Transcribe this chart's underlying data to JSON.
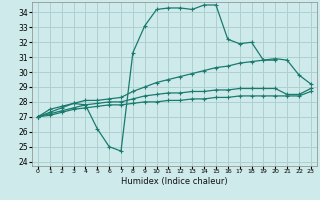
{
  "xlabel": "Humidex (Indice chaleur)",
  "bg_color": "#ceeaea",
  "grid_color": "#afd0d0",
  "line_color": "#1a7a6e",
  "xlim": [
    -0.5,
    23.5
  ],
  "ylim": [
    23.7,
    34.7
  ],
  "yticks": [
    24,
    25,
    26,
    27,
    28,
    29,
    30,
    31,
    32,
    33,
    34
  ],
  "xticks": [
    0,
    1,
    2,
    3,
    4,
    5,
    6,
    7,
    8,
    9,
    10,
    11,
    12,
    13,
    14,
    15,
    16,
    17,
    18,
    19,
    20,
    21,
    22,
    23
  ],
  "line_volatile": {
    "x": [
      0,
      1,
      2,
      3,
      4,
      5,
      6,
      7,
      8,
      9,
      10,
      11,
      12,
      13,
      14,
      15,
      16,
      17,
      18,
      19,
      20
    ],
    "y": [
      27.0,
      27.5,
      27.7,
      27.9,
      27.8,
      26.2,
      25.0,
      24.7,
      31.3,
      33.1,
      34.2,
      34.3,
      34.3,
      34.2,
      34.5,
      34.5,
      32.2,
      31.9,
      32.0,
      30.8,
      30.8
    ]
  },
  "line_upper": {
    "x": [
      0,
      1,
      2,
      3,
      4,
      5,
      6,
      7,
      8,
      9,
      10,
      11,
      12,
      13,
      14,
      15,
      16,
      17,
      18,
      19,
      20,
      21,
      22,
      23
    ],
    "y": [
      27.0,
      27.3,
      27.6,
      27.9,
      28.1,
      28.1,
      28.2,
      28.3,
      28.7,
      29.0,
      29.3,
      29.5,
      29.7,
      29.9,
      30.1,
      30.3,
      30.4,
      30.6,
      30.7,
      30.8,
      30.9,
      30.8,
      29.8,
      29.2
    ]
  },
  "line_mid": {
    "x": [
      0,
      1,
      2,
      3,
      4,
      5,
      6,
      7,
      8,
      9,
      10,
      11,
      12,
      13,
      14,
      15,
      16,
      17,
      18,
      19,
      20,
      21,
      22,
      23
    ],
    "y": [
      27.0,
      27.2,
      27.4,
      27.6,
      27.8,
      27.9,
      28.0,
      28.0,
      28.2,
      28.4,
      28.5,
      28.6,
      28.6,
      28.7,
      28.7,
      28.8,
      28.8,
      28.9,
      28.9,
      28.9,
      28.9,
      28.5,
      28.5,
      28.9
    ]
  },
  "line_lower": {
    "x": [
      0,
      1,
      2,
      3,
      4,
      5,
      6,
      7,
      8,
      9,
      10,
      11,
      12,
      13,
      14,
      15,
      16,
      17,
      18,
      19,
      20,
      21,
      22,
      23
    ],
    "y": [
      27.0,
      27.1,
      27.3,
      27.5,
      27.6,
      27.7,
      27.8,
      27.8,
      27.9,
      28.0,
      28.0,
      28.1,
      28.1,
      28.2,
      28.2,
      28.3,
      28.3,
      28.4,
      28.4,
      28.4,
      28.4,
      28.4,
      28.4,
      28.7
    ]
  },
  "line_peak": {
    "x": [
      21,
      22,
      23
    ],
    "y": [
      29.8,
      28.5,
      29.1
    ]
  }
}
